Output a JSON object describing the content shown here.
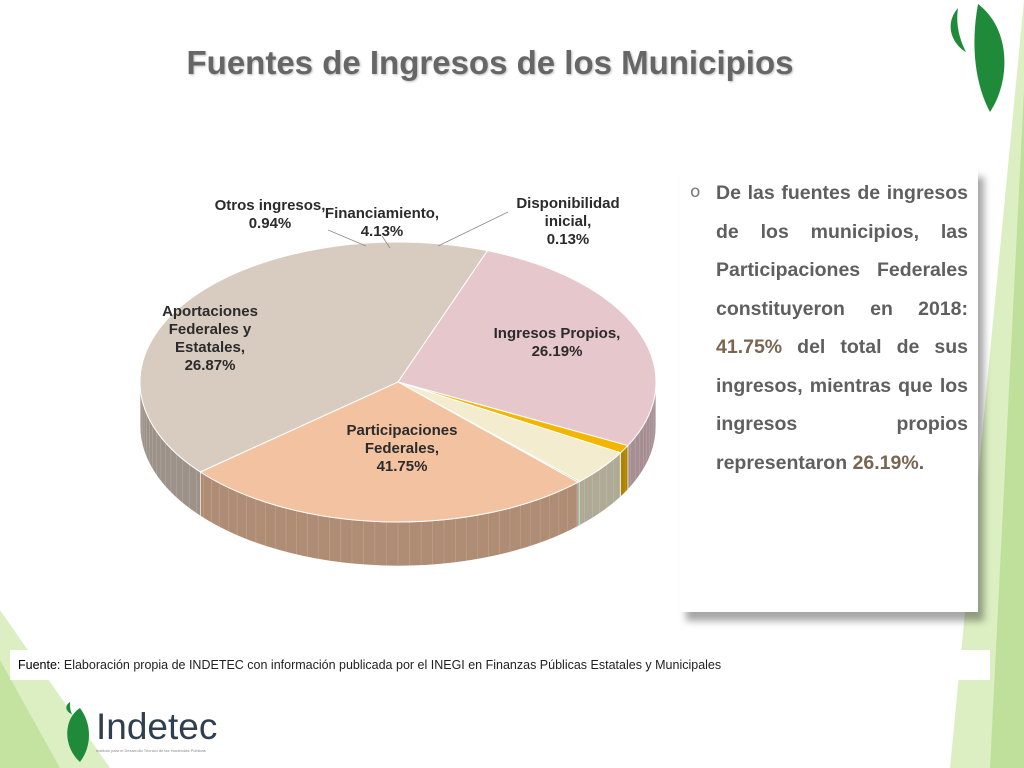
{
  "title": "Fuentes de Ingresos de los Municipios",
  "chart_data": {
    "type": "pie",
    "title": "",
    "slices": [
      {
        "name": "Participaciones Federales",
        "lines": [
          "Participaciones",
          "Federales,",
          "41.75%"
        ],
        "value": 41.75,
        "color": "#d8cbbf"
      },
      {
        "name": "Aportaciones Federales y Estatales",
        "lines": [
          "Aportaciones",
          "Federales y",
          "Estatales,",
          "26.87%"
        ],
        "value": 26.87,
        "color": "#e6c7cc"
      },
      {
        "name": "Otros ingresos",
        "lines": [
          "Otros ingresos,",
          "0.94%"
        ],
        "value": 0.94,
        "color": "#f2b600"
      },
      {
        "name": "Financiamiento",
        "lines": [
          "Financiamiento,",
          "4.13%"
        ],
        "value": 4.13,
        "color": "#f3eccf"
      },
      {
        "name": "Disponibilidad inicial",
        "lines": [
          "Disponibilidad",
          "inicial,",
          "0.13%"
        ],
        "value": 0.13,
        "color": "#6ea86e"
      },
      {
        "name": "Ingresos Propios",
        "lines": [
          "Ingresos Propios,",
          "26.19%"
        ],
        "value": 26.19,
        "color": "#f3c3a1"
      }
    ]
  },
  "callout": {
    "bullet": "o",
    "text_before": "De las fuentes de ingresos de los municipios, las Participaciones Federales constituyeron en 2018: ",
    "highlight1": "41.75%",
    "text_middle": " del total de sus ingresos, mientras que los ingresos propios representaron ",
    "highlight2": "26.19%",
    "text_after": "."
  },
  "source": {
    "label": "Fuente:",
    "text": " Elaboración propia de INDETEC con información publicada por el INEGI en Finanzas Públicas Estatales y Municipales"
  },
  "logo": {
    "name": "Indetec",
    "subtitle": "Instituto para el Desarrollo Técnico de las Haciendas Públicas"
  },
  "colors": {
    "accent_green": "#1f8a3a",
    "light_green": "#c9e3a8"
  }
}
